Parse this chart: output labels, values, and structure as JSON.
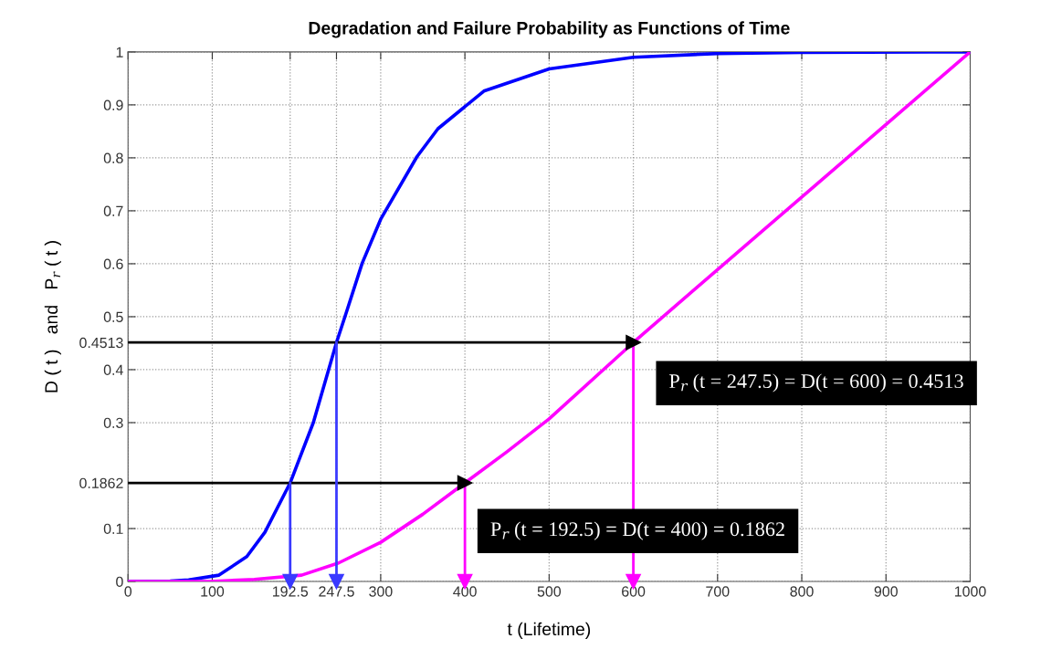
{
  "chart_data": {
    "type": "line",
    "title": "Degradation and Failure Probability as Functions of Time",
    "xlabel": "t (Lifetime)",
    "ylabel": "D ( t )   and   P$_{r}$ ( t )",
    "xlim": [
      0,
      1000
    ],
    "ylim": [
      0,
      1
    ],
    "xticks": [
      0,
      100,
      192.5,
      247.5,
      300,
      400,
      500,
      600,
      700,
      800,
      900,
      1000
    ],
    "yticks": [
      0,
      0.1,
      0.1862,
      0.3,
      0.4,
      0.4513,
      0.5,
      0.6,
      0.7,
      0.8,
      0.9,
      1
    ],
    "grid": true,
    "marker": "none",
    "line_style": "solid",
    "series": [
      {
        "color": "#0000ff",
        "x": [
          0,
          50,
          72,
          108,
          141,
          162.5,
          192.5,
          220,
          247.5,
          260,
          278,
          300,
          343,
          368,
          422.5,
          500,
          600,
          700,
          800,
          1000
        ],
        "values": [
          0,
          0.001,
          0.003,
          0.012,
          0.047,
          0.093,
          0.1862,
          0.3,
          0.4513,
          0.512,
          0.601,
          0.684,
          0.802,
          0.855,
          0.926,
          0.968,
          0.99,
          0.997,
          0.999,
          1
        ]
      },
      {
        "color": "#ff00ff",
        "x": [
          0,
          97.5,
          150,
          206,
          250,
          300,
          350,
          400,
          450,
          500,
          600,
          700,
          800,
          900,
          1000
        ],
        "values": [
          0,
          0,
          0.004,
          0.012,
          0.035,
          0.074,
          0.127,
          0.1862,
          0.245,
          0.307,
          0.4513,
          0.589,
          0.726,
          0.863,
          1
        ]
      },
      {
        "color": "#000000",
        "marker": "triangle",
        "x": [
          0,
          600
        ],
        "values": [
          0.4513,
          0.4513
        ]
      },
      {
        "color": "#000000",
        "marker": "triangle",
        "x": [
          0,
          400
        ],
        "values": [
          0.1862,
          0.1862
        ]
      },
      {
        "color": "#3a3aff",
        "marker": "triangle",
        "x": [
          247.5,
          247.5
        ],
        "values": [
          0.4513,
          0
        ]
      },
      {
        "color": "#3a3aff",
        "marker": "triangle",
        "x": [
          192.5,
          192.5
        ],
        "values": [
          0.1862,
          0
        ]
      },
      {
        "color": "#ff00ff",
        "marker": "triangle",
        "x": [
          600,
          600
        ],
        "values": [
          0.4513,
          0
        ]
      },
      {
        "color": "#ff00ff",
        "marker": "triangle",
        "x": [
          400,
          400
        ],
        "values": [
          0.1862,
          0
        ]
      }
    ],
    "annotations": [
      {
        "text": "P$_{r}$ (t = 247.5) = D(t = 600) = 0.4513",
        "x": 600,
        "y": 0.4513
      },
      {
        "text": "P$_{r}$ (t = 192.5) = D(t = 400) = 0.1862",
        "x": 400,
        "y": 0.1862
      }
    ]
  }
}
